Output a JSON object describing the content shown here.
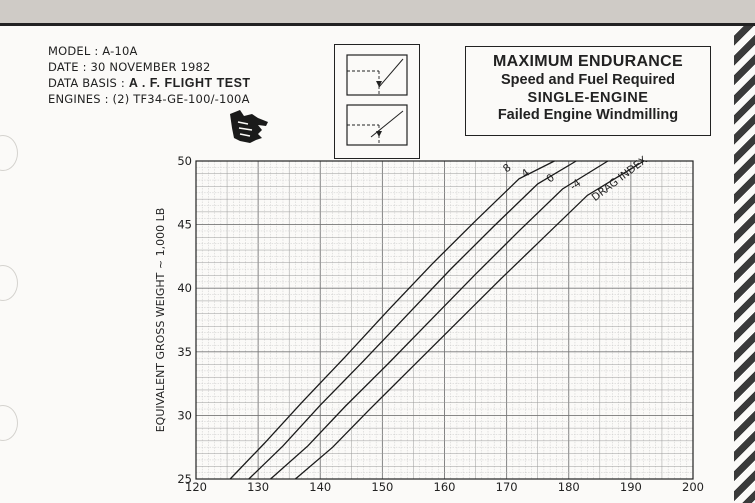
{
  "header": {
    "model": "MODEL : A-10A",
    "date": "DATE : 30 NOVEMBER 1982",
    "data_basis_prefix": "DATA BASIS : ",
    "data_basis_value": "A . F. FLIGHT TEST",
    "engines": "ENGINES : (2) TF34-GE-100/-100A"
  },
  "title_box": {
    "line1": "MAXIMUM ENDURANCE",
    "line2": "Speed and Fuel Required",
    "line3": "SINGLE-ENGINE",
    "line4": "Failed Engine Windmilling"
  },
  "chart_data": {
    "type": "line",
    "ylabel": "EQUIVALENT GROSS WEIGHT ~ 1,000 LB",
    "xlim": [
      120,
      200
    ],
    "ylim": [
      25,
      50
    ],
    "x_ticks": [
      120,
      130,
      140,
      150,
      160,
      170,
      180,
      190,
      200
    ],
    "y_ticks": [
      25,
      30,
      35,
      40,
      45,
      50
    ],
    "grid": true,
    "annotation": "DRAG INDEX",
    "series": [
      {
        "name": "8",
        "x": [
          125.5,
          131,
          137,
          144,
          151,
          158,
          165,
          172,
          177.7
        ],
        "y": [
          25,
          27.8,
          31,
          34.6,
          38.3,
          41.9,
          45.3,
          48.6,
          50
        ]
      },
      {
        "name": "4",
        "x": [
          128.5,
          134,
          140,
          147,
          154,
          161,
          168,
          175,
          181.2
        ],
        "y": [
          25,
          27.6,
          30.8,
          34.3,
          37.9,
          41.5,
          44.9,
          48.2,
          50
        ]
      },
      {
        "name": "0",
        "x": [
          132,
          138,
          144,
          151,
          158,
          165,
          172,
          179,
          186.3
        ],
        "y": [
          25,
          27.6,
          30.7,
          34.1,
          37.6,
          41.1,
          44.5,
          47.8,
          50
        ]
      },
      {
        "name": "-4",
        "x": [
          136,
          142,
          148,
          155,
          162,
          169,
          176,
          183,
          192.1
        ],
        "y": [
          25,
          27.5,
          30.5,
          33.9,
          37.3,
          40.7,
          44.0,
          47.3,
          50
        ]
      }
    ]
  }
}
